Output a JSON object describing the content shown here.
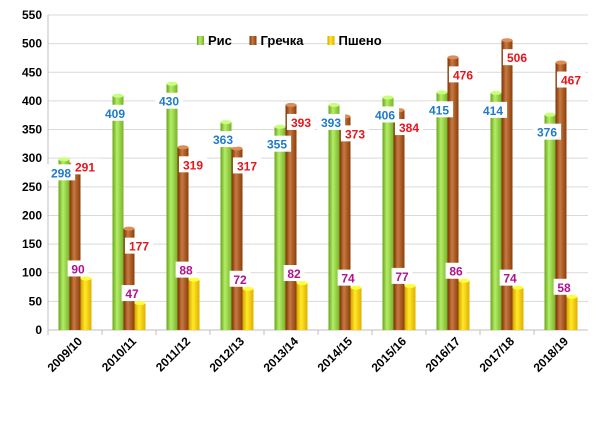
{
  "chart_data": {
    "type": "bar",
    "categories": [
      "2009/10",
      "2010/11",
      "2011/12",
      "2012/13",
      "2013/14",
      "2014/15",
      "2015/16",
      "2016/17",
      "2017/18",
      "2018/19"
    ],
    "series": [
      {
        "name": "Рис",
        "values": [
          298,
          409,
          430,
          363,
          355,
          393,
          406,
          415,
          414,
          376
        ],
        "color": "#8cc63f",
        "label_color": "#1f7ac9"
      },
      {
        "name": "Гречка",
        "values": [
          291,
          177,
          319,
          317,
          393,
          373,
          384,
          476,
          506,
          467
        ],
        "color": "#a0521c",
        "label_color": "#e8141b"
      },
      {
        "name": "Пшено",
        "values": [
          90,
          47,
          88,
          72,
          82,
          74,
          77,
          86,
          74,
          58
        ],
        "color": "#f5c200",
        "label_color": "#b0128e"
      }
    ],
    "ylim": [
      0,
      550
    ],
    "yticks": [
      0,
      50,
      100,
      150,
      200,
      250,
      300,
      350,
      400,
      450,
      500,
      550
    ],
    "grid": true,
    "legend_position": "top-center"
  }
}
